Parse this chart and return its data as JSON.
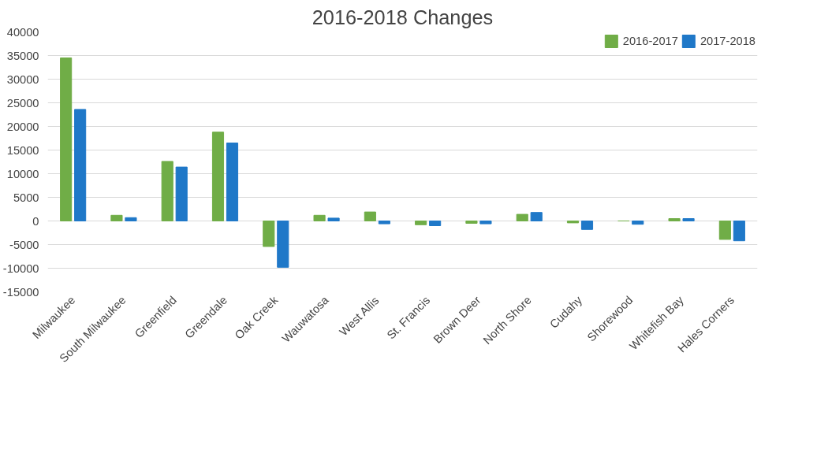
{
  "chart_data": {
    "type": "bar",
    "title": "2016-2018 Changes",
    "categories": [
      "Milwaukee",
      "South Milwaukee",
      "Greenfield",
      "Greendale",
      "Oak Creek",
      "Wauwatosa",
      "West Allis",
      "St. Francis",
      "Brown Deer",
      "North Shore",
      "Cudahy",
      "Shorewood",
      "Whitefish Bay",
      "Hales Corners"
    ],
    "series": [
      {
        "name": "2016-2017",
        "color": "#70ad47",
        "values": [
          34500,
          1200,
          12600,
          18800,
          -5400,
          1200,
          1900,
          -800,
          -500,
          1400,
          -400,
          0,
          500,
          -3900
        ]
      },
      {
        "name": "2017-2018",
        "color": "#1f78c8",
        "values": [
          23600,
          700,
          11400,
          16500,
          -9800,
          600,
          -600,
          -1000,
          -600,
          1800,
          -1800,
          -700,
          500,
          -4200
        ]
      }
    ],
    "ylim": [
      -15000,
      40000
    ],
    "yticks": [
      -15000,
      -10000,
      -5000,
      0,
      5000,
      10000,
      15000,
      20000,
      25000,
      30000,
      35000,
      40000
    ],
    "grid": "y",
    "legend": "top right"
  }
}
